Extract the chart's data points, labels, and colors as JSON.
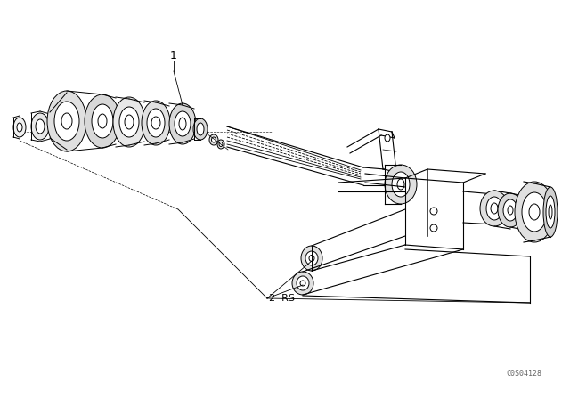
{
  "bg_color": "#ffffff",
  "line_color": "#000000",
  "label1_text": "1",
  "label2_text": "2  RS",
  "catalog_text": "C0S04128",
  "figsize": [
    6.4,
    4.48
  ],
  "dpi": 100
}
